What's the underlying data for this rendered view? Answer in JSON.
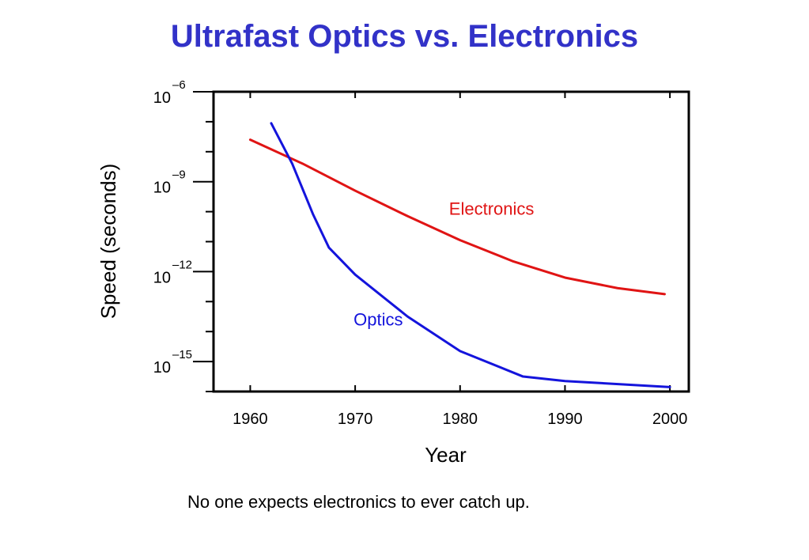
{
  "slide": {
    "title": "Ultrafast Optics vs. Electronics",
    "caption": "No one expects electronics to ever catch up."
  },
  "colors": {
    "title": "#3232c8",
    "optics": "#1414dc",
    "electronics": "#e01414",
    "axis": "#000000"
  },
  "chart_data": {
    "type": "line",
    "title": "",
    "xlabel": "Year",
    "ylabel": "Speed (seconds)",
    "xlim": [
      1956.5,
      2001.8
    ],
    "x_ticks": [
      1960,
      1970,
      1980,
      1990,
      2000
    ],
    "y_scale": "log",
    "y_exponent_lim": [
      -16,
      -6
    ],
    "y_ticks": [
      {
        "base": "10",
        "exp": "–6",
        "value_exp": -6
      },
      {
        "base": "10",
        "exp": "–9",
        "value_exp": -9
      },
      {
        "base": "10",
        "exp": "–12",
        "value_exp": -12
      },
      {
        "base": "10",
        "exp": "–15",
        "value_exp": -15
      }
    ],
    "grid": false,
    "series": [
      {
        "name": "Electronics",
        "color": "#e01414",
        "label_position": {
          "x": 1983,
          "y_exp": -10.1
        },
        "points": [
          {
            "x": 1960,
            "y_exp": -7.6
          },
          {
            "x": 1965,
            "y_exp": -8.4
          },
          {
            "x": 1970,
            "y_exp": -9.3
          },
          {
            "x": 1975,
            "y_exp": -10.15
          },
          {
            "x": 1980,
            "y_exp": -10.95
          },
          {
            "x": 1985,
            "y_exp": -11.65
          },
          {
            "x": 1990,
            "y_exp": -12.2
          },
          {
            "x": 1995,
            "y_exp": -12.55
          },
          {
            "x": 1999.5,
            "y_exp": -12.75
          }
        ]
      },
      {
        "name": "Optics",
        "color": "#1414dc",
        "label_position": {
          "x": 1972.2,
          "y_exp": -13.8
        },
        "points": [
          {
            "x": 1962,
            "y_exp": -7.05
          },
          {
            "x": 1964,
            "y_exp": -8.4
          },
          {
            "x": 1966,
            "y_exp": -10.1
          },
          {
            "x": 1967.5,
            "y_exp": -11.2
          },
          {
            "x": 1970,
            "y_exp": -12.1
          },
          {
            "x": 1975,
            "y_exp": -13.5
          },
          {
            "x": 1980,
            "y_exp": -14.65
          },
          {
            "x": 1986,
            "y_exp": -15.5
          },
          {
            "x": 1990,
            "y_exp": -15.65
          },
          {
            "x": 2000,
            "y_exp": -15.85
          }
        ]
      }
    ]
  }
}
